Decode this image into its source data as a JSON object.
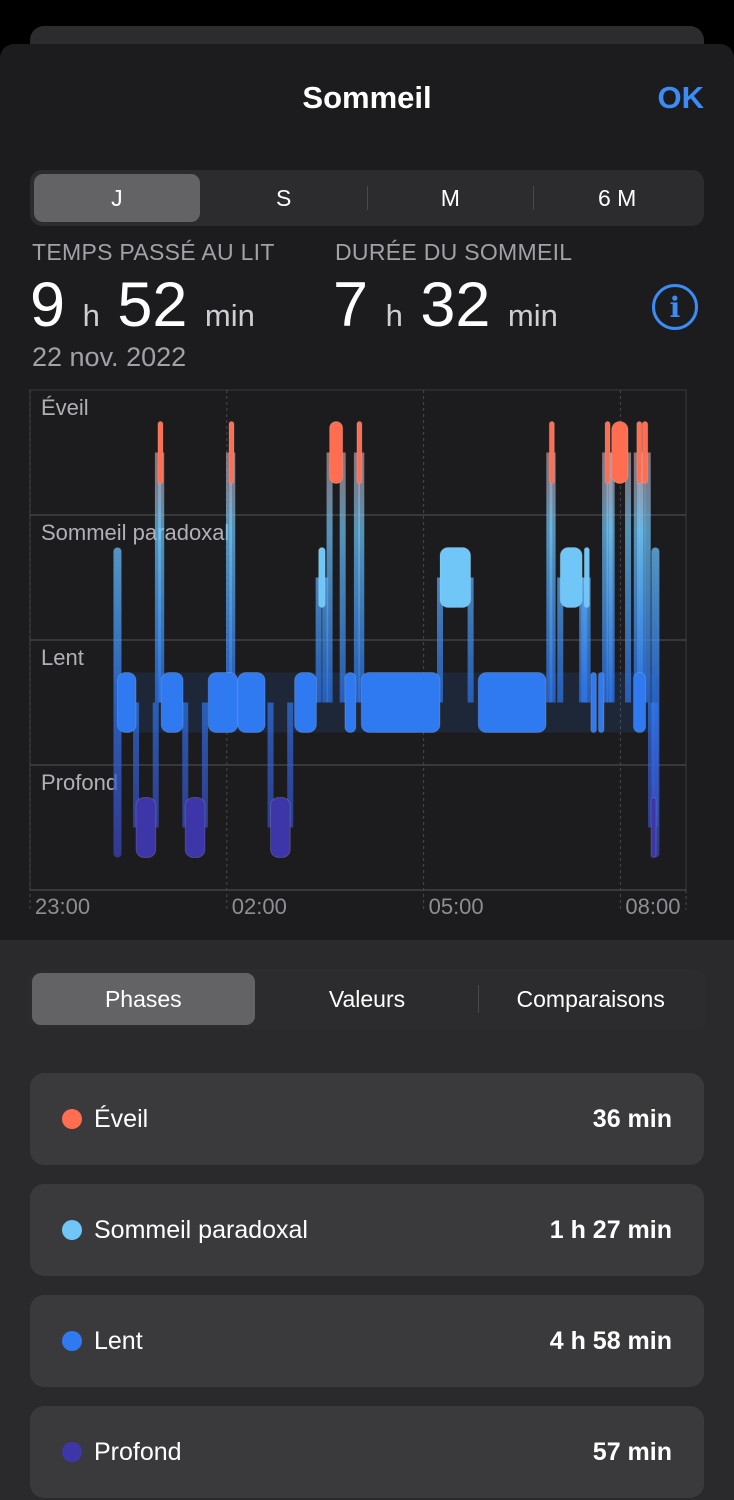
{
  "header": {
    "title": "Sommeil",
    "done_label": "OK"
  },
  "period_tabs": {
    "items": [
      "J",
      "S",
      "M",
      "6 M"
    ],
    "selected": 0
  },
  "stats": {
    "in_bed": {
      "label": "TEMPS PASSÉ AU LIT",
      "hours": "9",
      "hours_unit": "h",
      "minutes": "52",
      "minutes_unit": "min"
    },
    "asleep": {
      "label": "DURÉE DU SOMMEIL",
      "hours": "7",
      "hours_unit": "h",
      "minutes": "32",
      "minutes_unit": "min"
    },
    "date": "22 nov. 2022"
  },
  "chart_data": {
    "type": "timeline",
    "stages": [
      "Éveil",
      "Sommeil paradoxal",
      "Lent",
      "Profond"
    ],
    "x_ticks": [
      "23:00",
      "02:00",
      "05:00",
      "08:00"
    ],
    "x_range": [
      "23:00",
      "09:00"
    ],
    "colors": {
      "Éveil": "#ff6e50",
      "Sommeil paradoxal": "#6fc6f7",
      "Lent": "#2f7af1",
      "Profond": "#3d36a8"
    },
    "segments": [
      {
        "stage": "Lent",
        "start": "00:20",
        "end": "00:37"
      },
      {
        "stage": "Profond",
        "start": "00:37",
        "end": "00:55"
      },
      {
        "stage": "Éveil",
        "start": "00:57",
        "end": "01:00"
      },
      {
        "stage": "Lent",
        "start": "01:00",
        "end": "01:20"
      },
      {
        "stage": "Profond",
        "start": "01:22",
        "end": "01:40"
      },
      {
        "stage": "Lent",
        "start": "01:43",
        "end": "02:10"
      },
      {
        "stage": "Éveil",
        "start": "02:02",
        "end": "02:05"
      },
      {
        "stage": "Lent",
        "start": "02:10",
        "end": "02:35"
      },
      {
        "stage": "Profond",
        "start": "02:40",
        "end": "02:58"
      },
      {
        "stage": "Lent",
        "start": "03:02",
        "end": "03:22"
      },
      {
        "stage": "Sommeil paradoxal",
        "start": "03:24",
        "end": "03:30"
      },
      {
        "stage": "Éveil",
        "start": "03:34",
        "end": "03:46"
      },
      {
        "stage": "Lent",
        "start": "03:48",
        "end": "03:58"
      },
      {
        "stage": "Éveil",
        "start": "03:59",
        "end": "04:03"
      },
      {
        "stage": "Lent",
        "start": "04:03",
        "end": "05:15"
      },
      {
        "stage": "Sommeil paradoxal",
        "start": "05:15",
        "end": "05:43"
      },
      {
        "stage": "Lent",
        "start": "05:50",
        "end": "06:52"
      },
      {
        "stage": "Éveil",
        "start": "06:55",
        "end": "06:58"
      },
      {
        "stage": "Sommeil paradoxal",
        "start": "07:05",
        "end": "07:25"
      },
      {
        "stage": "Sommeil paradoxal",
        "start": "07:27",
        "end": "07:30"
      },
      {
        "stage": "Lent",
        "start": "07:33",
        "end": "07:38"
      },
      {
        "stage": "Lent",
        "start": "07:40",
        "end": "07:45"
      },
      {
        "stage": "Éveil",
        "start": "07:46",
        "end": "07:50"
      },
      {
        "stage": "Éveil",
        "start": "07:52",
        "end": "08:07"
      },
      {
        "stage": "Lent",
        "start": "08:12",
        "end": "08:23"
      },
      {
        "stage": "Éveil",
        "start": "08:15",
        "end": "08:18"
      },
      {
        "stage": "Éveil",
        "start": "08:20",
        "end": "08:25"
      },
      {
        "stage": "Profond",
        "start": "08:28",
        "end": "08:32"
      }
    ]
  },
  "view_tabs": {
    "items": [
      "Phases",
      "Valeurs",
      "Comparaisons"
    ],
    "selected": 0
  },
  "phases": [
    {
      "name": "Éveil",
      "duration": "36 min",
      "color": "#ff6e50"
    },
    {
      "name": "Sommeil paradoxal",
      "duration": "1 h 27 min",
      "color": "#6fc6f7"
    },
    {
      "name": "Lent",
      "duration": "4 h 58 min",
      "color": "#2f7af1"
    },
    {
      "name": "Profond",
      "duration": "57 min",
      "color": "#3d36a8"
    }
  ]
}
